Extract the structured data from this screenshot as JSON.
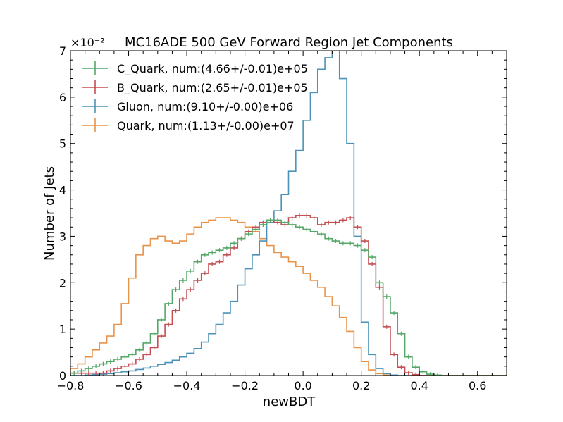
{
  "chart_data": {
    "type": "line",
    "title": "MC16ADE 500 GeV Forward Region Jet Components",
    "xlabel": "newBDT",
    "ylabel": "Number of Jets",
    "y_scale_label": "×10⁻²",
    "xlim": [
      -0.8,
      0.7
    ],
    "ylim": [
      0,
      7
    ],
    "x_ticks": [
      "−0.8",
      "−0.6",
      "−0.4",
      "−0.2",
      "0.0",
      "0.2",
      "0.4",
      "0.6"
    ],
    "y_ticks": [
      "0",
      "1",
      "2",
      "3",
      "4",
      "5",
      "6",
      "7"
    ],
    "legend_position": "top-left",
    "bin_edges_start": -0.8,
    "bin_width": 0.025,
    "series": [
      {
        "name": "C_Quark, num:(4.66+/-0.01)e+05",
        "color": "#55a868",
        "values": [
          0.05,
          0.1,
          0.15,
          0.2,
          0.25,
          0.3,
          0.35,
          0.4,
          0.45,
          0.55,
          0.7,
          0.9,
          1.2,
          1.55,
          1.85,
          2.05,
          2.25,
          2.45,
          2.6,
          2.65,
          2.7,
          2.75,
          2.85,
          2.95,
          3.05,
          3.15,
          3.25,
          3.35,
          3.35,
          3.3,
          3.25,
          3.2,
          3.15,
          3.1,
          3.05,
          2.95,
          2.9,
          2.85,
          2.85,
          2.8,
          2.7,
          2.55,
          2.0,
          1.7,
          1.35,
          0.9,
          0.4,
          0.18,
          0.08,
          0.03,
          0.01,
          0.0,
          0.0,
          0.0,
          0.0,
          0.0,
          0.0,
          0.0,
          0.0,
          0.0
        ]
      },
      {
        "name": "B_Quark, num:(2.65+/-0.01)e+05",
        "color": "#c44e52",
        "values": [
          0.05,
          0.05,
          0.05,
          0.05,
          0.05,
          0.1,
          0.15,
          0.2,
          0.25,
          0.35,
          0.45,
          0.6,
          0.85,
          1.1,
          1.4,
          1.65,
          1.85,
          2.05,
          2.2,
          2.4,
          2.45,
          2.6,
          2.75,
          2.95,
          3.1,
          3.2,
          3.3,
          3.35,
          3.3,
          3.25,
          3.4,
          3.45,
          3.45,
          3.4,
          3.25,
          3.3,
          3.3,
          3.35,
          3.4,
          3.2,
          2.9,
          2.4,
          1.9,
          1.05,
          0.45,
          0.18,
          0.06,
          0.02,
          0.0,
          0.0,
          0.0,
          0.0,
          0.0,
          0.0,
          0.0,
          0.0,
          0.0,
          0.0,
          0.0,
          0.0
        ]
      },
      {
        "name": "Gluon, num:(9.10+/-0.00)e+06",
        "color": "#4c92b8",
        "values": [
          0.0,
          0.0,
          0.01,
          0.02,
          0.03,
          0.04,
          0.06,
          0.08,
          0.1,
          0.13,
          0.16,
          0.2,
          0.24,
          0.28,
          0.33,
          0.4,
          0.48,
          0.58,
          0.72,
          0.9,
          1.1,
          1.35,
          1.6,
          1.95,
          2.3,
          2.6,
          2.9,
          3.3,
          3.55,
          3.9,
          4.4,
          4.85,
          5.5,
          6.1,
          6.6,
          6.85,
          7.0,
          6.4,
          5.0,
          3.0,
          1.15,
          0.45,
          0.15,
          0.04,
          0.01,
          0.0,
          0.0,
          0.0,
          0.0,
          0.0,
          0.0,
          0.0,
          0.0,
          0.0,
          0.0,
          0.0,
          0.0,
          0.0,
          0.0,
          0.0
        ]
      },
      {
        "name": "Quark, num:(1.13+/-0.00)e+07",
        "color": "#e8934a",
        "values": [
          0.15,
          0.25,
          0.4,
          0.55,
          0.7,
          0.85,
          1.1,
          1.55,
          2.1,
          2.6,
          2.8,
          2.95,
          3.0,
          2.9,
          2.85,
          2.9,
          3.05,
          3.2,
          3.3,
          3.35,
          3.4,
          3.4,
          3.35,
          3.3,
          3.2,
          3.1,
          2.95,
          2.8,
          2.65,
          2.55,
          2.45,
          2.35,
          2.2,
          2.05,
          1.9,
          1.7,
          1.5,
          1.25,
          0.95,
          0.6,
          0.3,
          0.12,
          0.04,
          0.01,
          0.0,
          0.0,
          0.0,
          0.0,
          0.0,
          0.0,
          0.0,
          0.0,
          0.0,
          0.0,
          0.0,
          0.0,
          0.0,
          0.0,
          0.0,
          0.0
        ]
      }
    ]
  }
}
